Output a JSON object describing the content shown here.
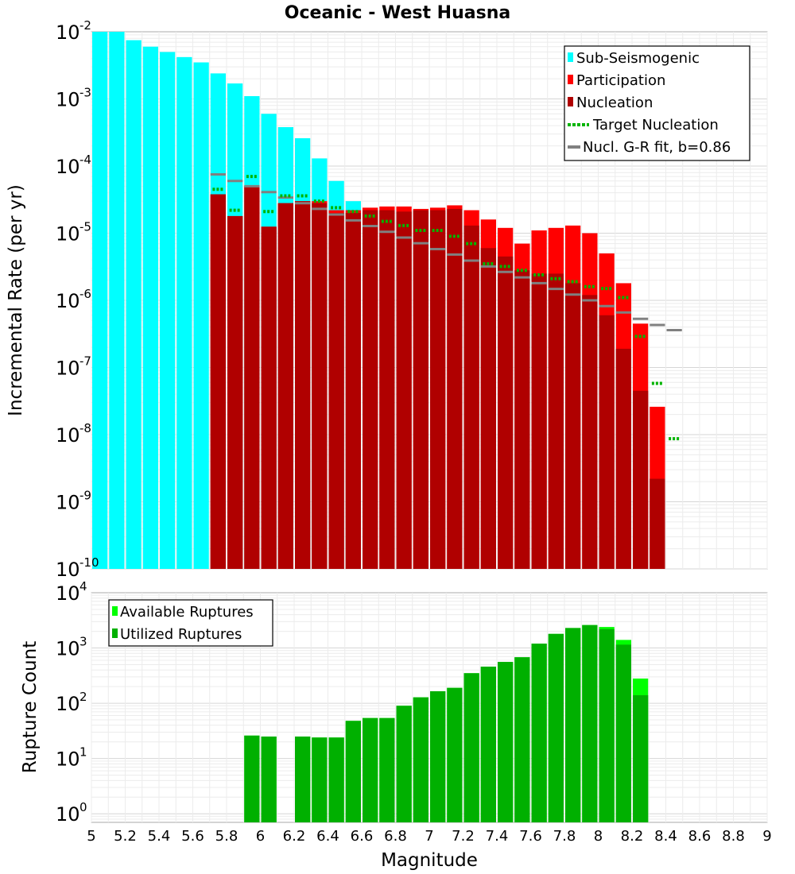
{
  "title": "Oceanic - West Huasna",
  "colors": {
    "sub_seismogenic": "#00ffff",
    "participation": "#ff0000",
    "nucleation": "#b00000",
    "target_nucleation": "#00b400",
    "gr_fit": "#808080",
    "available": "#00ff00",
    "utilized": "#00b000"
  },
  "chart_data": [
    {
      "type": "bar",
      "title": "Oceanic - West Huasna",
      "xlabel": "",
      "ylabel": "Incremental Rate (per yr)",
      "yscale": "log",
      "xlim": [
        5,
        9
      ],
      "ylim": [
        1e-10,
        0.01
      ],
      "ytick_exponents": [
        "-10",
        "-9",
        "-8",
        "-7",
        "-6",
        "-5",
        "-4",
        "-3",
        "-2"
      ],
      "bin_width": 0.1,
      "grid": true,
      "legend_position": "top-right",
      "legend": [
        "Sub-Seismogenic",
        "Participation",
        "Nucleation",
        "Target Nucleation",
        "Nucl. G-R fit, b=0.86"
      ],
      "series": [
        {
          "name": "Sub-Seismogenic",
          "kind": "bar",
          "x": [
            5.05,
            5.15,
            5.25,
            5.35,
            5.45,
            5.55,
            5.65,
            5.75,
            5.85,
            5.95,
            6.05,
            6.15,
            6.25,
            6.35,
            6.45,
            6.55
          ],
          "values": [
            0.01,
            0.01,
            0.0075,
            0.006,
            0.005,
            0.0042,
            0.0035,
            0.0024,
            0.0017,
            0.0011,
            0.0006,
            0.00038,
            0.00026,
            0.00013,
            6e-05,
            3e-05
          ]
        },
        {
          "name": "Participation",
          "kind": "bar",
          "x": [
            5.75,
            5.85,
            5.95,
            6.05,
            6.15,
            6.25,
            6.35,
            6.45,
            6.55,
            6.65,
            6.75,
            6.85,
            6.95,
            7.05,
            7.15,
            7.25,
            7.35,
            7.45,
            7.55,
            7.65,
            7.75,
            7.85,
            7.95,
            8.05,
            8.15,
            8.25,
            8.35
          ],
          "values": [
            3.8e-05,
            1.8e-05,
            5e-05,
            1.25e-05,
            2.8e-05,
            3e-05,
            3e-05,
            2.2e-05,
            2.2e-05,
            2.4e-05,
            2.5e-05,
            2.5e-05,
            2.3e-05,
            2.4e-05,
            2.6e-05,
            2.2e-05,
            1.6e-05,
            1.2e-05,
            7e-06,
            1.1e-05,
            1.2e-05,
            1.3e-05,
            1e-05,
            5e-06,
            1.8e-06,
            4.5e-07,
            2.6e-08
          ]
        },
        {
          "name": "Nucleation",
          "kind": "bar",
          "x": [
            5.75,
            5.85,
            5.95,
            6.05,
            6.15,
            6.25,
            6.35,
            6.45,
            6.55,
            6.65,
            6.75,
            6.85,
            6.95,
            7.05,
            7.15,
            7.25,
            7.35,
            7.45,
            7.55,
            7.65,
            7.75,
            7.85,
            7.95,
            8.05,
            8.15,
            8.25,
            8.35
          ],
          "values": [
            3.8e-05,
            1.8e-05,
            5e-05,
            1.25e-05,
            2.8e-05,
            3e-05,
            2.8e-05,
            2e-05,
            2e-05,
            2.2e-05,
            2.2e-05,
            2.1e-05,
            2.2e-05,
            2.2e-05,
            2.3e-05,
            1.3e-05,
            6e-06,
            4.5e-06,
            2.8e-06,
            2.5e-06,
            2.5e-06,
            1.8e-06,
            1.2e-06,
            6e-07,
            1.9e-07,
            4.5e-08,
            2.2e-09
          ]
        },
        {
          "name": "Target Nucleation",
          "kind": "dash",
          "x": [
            5.75,
            5.85,
            5.95,
            6.05,
            6.15,
            6.25,
            6.35,
            6.45,
            6.55,
            6.65,
            6.75,
            6.85,
            6.95,
            7.05,
            7.15,
            7.25,
            7.35,
            7.45,
            7.55,
            7.65,
            7.75,
            7.85,
            7.95,
            8.05,
            8.15,
            8.25,
            8.35,
            8.45
          ],
          "values": [
            4.5e-05,
            2.2e-05,
            7e-05,
            2.1e-05,
            3.6e-05,
            3.6e-05,
            3e-05,
            2.4e-05,
            2.1e-05,
            1.8e-05,
            1.5e-05,
            1.3e-05,
            1.1e-05,
            1.1e-05,
            9e-06,
            7e-06,
            3.5e-06,
            3.2e-06,
            2.8e-06,
            2.4e-06,
            2.1e-06,
            1.9e-06,
            1.6e-06,
            1.5e-06,
            1.1e-06,
            2.9e-07,
            5.8e-08,
            8.7e-09
          ]
        },
        {
          "name": "Nucl. G-R fit, b=0.86",
          "kind": "dash",
          "x": [
            5.75,
            5.85,
            5.95,
            6.05,
            6.15,
            6.25,
            6.35,
            6.45,
            6.55,
            6.65,
            6.75,
            6.85,
            6.95,
            7.05,
            7.15,
            7.25,
            7.35,
            7.45,
            7.55,
            7.65,
            7.75,
            7.85,
            7.95,
            8.05,
            8.15,
            8.25,
            8.35,
            8.45
          ],
          "values": [
            7.5e-05,
            6e-05,
            5e-05,
            4.1e-05,
            3.4e-05,
            2.8e-05,
            2.3e-05,
            1.9e-05,
            1.55e-05,
            1.28e-05,
            1.05e-05,
            8.6e-06,
            7.1e-06,
            5.8e-06,
            4.8e-06,
            3.9e-06,
            3.2e-06,
            2.65e-06,
            2.2e-06,
            1.8e-06,
            1.48e-06,
            1.22e-06,
            1e-06,
            8.2e-07,
            6.6e-07,
            5.3e-07,
            4.3e-07,
            3.6e-07
          ]
        }
      ]
    },
    {
      "type": "bar",
      "xlabel": "Magnitude",
      "ylabel": "Rupture Count",
      "yscale": "log",
      "xlim": [
        5,
        9
      ],
      "ylim": [
        0.7,
        10000
      ],
      "ytick_exponents": [
        "0",
        "1",
        "2",
        "3",
        "4"
      ],
      "xticks": [
        "5",
        "5.2",
        "5.4",
        "5.6",
        "5.8",
        "6",
        "6.2",
        "6.4",
        "6.6",
        "6.8",
        "7",
        "7.2",
        "7.4",
        "7.6",
        "7.8",
        "8",
        "8.2",
        "8.4",
        "8.6",
        "8.8",
        "9"
      ],
      "bin_width": 0.1,
      "grid": true,
      "legend_position": "top-left",
      "legend": [
        "Available Ruptures",
        "Utilized Ruptures"
      ],
      "series": [
        {
          "name": "Available Ruptures",
          "x": [
            5.95,
            6.05,
            6.25,
            6.35,
            6.45,
            6.55,
            6.65,
            6.75,
            6.85,
            6.95,
            7.05,
            7.15,
            7.25,
            7.35,
            7.45,
            7.55,
            7.65,
            7.75,
            7.85,
            7.95,
            8.05,
            8.15,
            8.25
          ],
          "values": [
            26,
            25,
            25,
            24,
            24,
            48,
            54,
            54,
            90,
            128,
            165,
            190,
            350,
            460,
            560,
            680,
            1200,
            1800,
            2300,
            2600,
            2400,
            1400,
            280
          ]
        },
        {
          "name": "Utilized Ruptures",
          "x": [
            5.95,
            6.05,
            6.25,
            6.35,
            6.45,
            6.55,
            6.65,
            6.75,
            6.85,
            6.95,
            7.05,
            7.15,
            7.25,
            7.35,
            7.45,
            7.55,
            7.65,
            7.75,
            7.85,
            7.95,
            8.05,
            8.15,
            8.25
          ],
          "values": [
            26,
            25,
            25,
            24,
            24,
            48,
            54,
            54,
            90,
            128,
            165,
            190,
            350,
            460,
            560,
            680,
            1200,
            1800,
            2300,
            2600,
            2200,
            1150,
            140
          ]
        }
      ]
    }
  ]
}
